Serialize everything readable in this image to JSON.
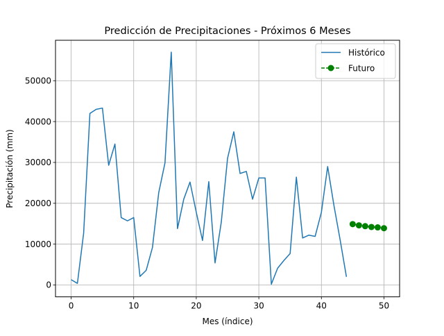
{
  "chart_data": {
    "type": "line",
    "title": "Predicción de Precipitaciones - Próximos 6 Meses",
    "xlabel": "Mes (índice)",
    "ylabel": "Precipitación (mm)",
    "xlim": [
      -2.5,
      52.5
    ],
    "ylim": [
      -2900,
      59900
    ],
    "xticks": [
      0,
      10,
      20,
      30,
      40,
      50
    ],
    "yticks": [
      0,
      10000,
      20000,
      30000,
      40000,
      50000
    ],
    "grid": true,
    "legend_position": "top-right",
    "series": [
      {
        "name": "Histórico",
        "style": "solid-line",
        "color": "#1f77b4",
        "x": [
          0,
          1,
          2,
          3,
          4,
          5,
          6,
          7,
          8,
          9,
          10,
          11,
          12,
          13,
          14,
          15,
          16,
          17,
          18,
          19,
          20,
          21,
          22,
          23,
          24,
          25,
          26,
          27,
          28,
          29,
          30,
          31,
          32,
          33,
          34,
          35,
          36,
          37,
          38,
          39,
          40,
          41,
          42,
          43,
          44
        ],
        "y": [
          1300,
          400,
          12700,
          42000,
          43000,
          43300,
          29300,
          34500,
          16500,
          15700,
          16500,
          2100,
          3600,
          9200,
          22600,
          29900,
          57000,
          13800,
          21000,
          25200,
          17800,
          10900,
          25300,
          5400,
          15400,
          31000,
          37500,
          27300,
          27800,
          21000,
          26200,
          26200,
          200,
          4100,
          6000,
          7700,
          26400,
          11500,
          12200,
          11900,
          17800,
          29000,
          19500,
          11000,
          2000
        ]
      },
      {
        "name": "Futuro",
        "style": "dashed-line-with-circle-markers",
        "color": "#008000",
        "x": [
          45,
          46,
          47,
          48,
          49,
          50
        ],
        "y": [
          14900,
          14600,
          14400,
          14200,
          14100,
          13900
        ]
      }
    ]
  }
}
